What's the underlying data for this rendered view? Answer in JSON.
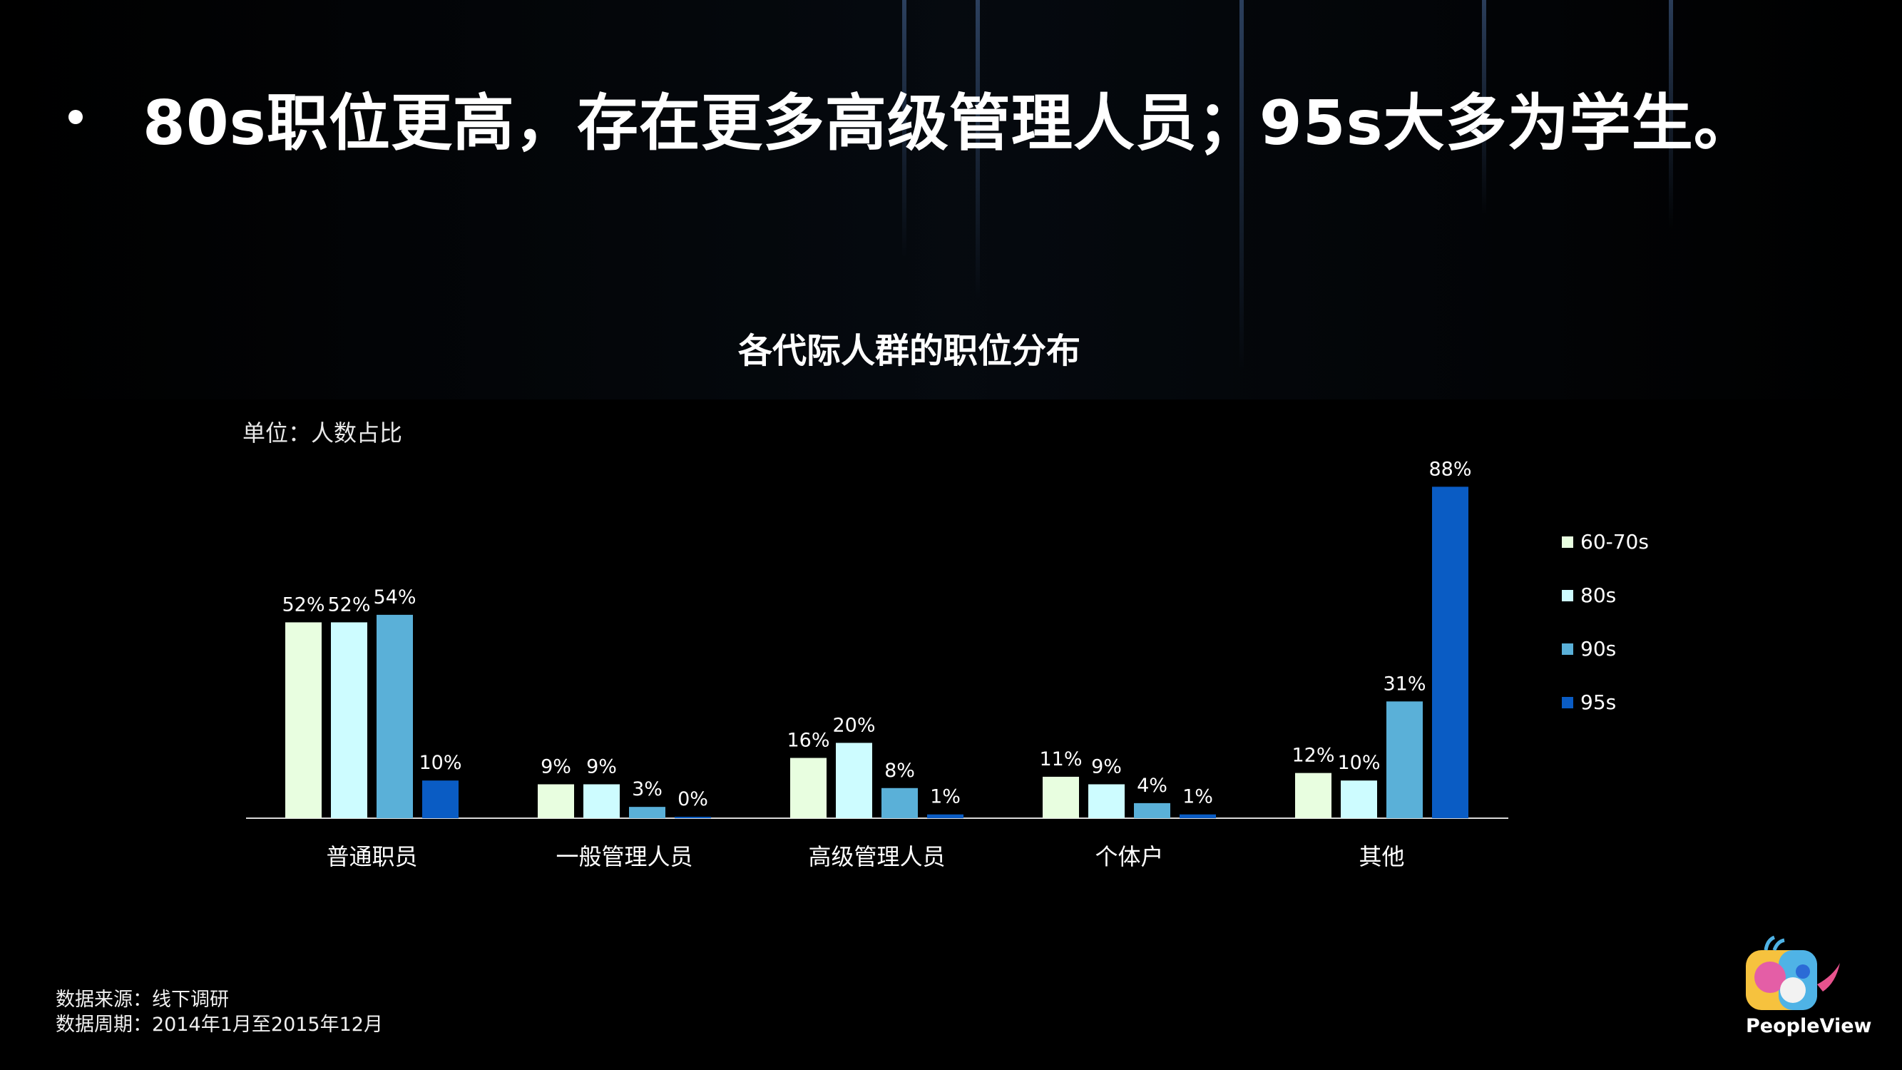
{
  "headline": "80s职位更高，存在更多高级管理人员；95s大多为学生。",
  "chart_data": {
    "type": "bar",
    "title": "各代际人群的职位分布",
    "unit_label": "单位：人数占比",
    "categories": [
      "普通职员",
      "一般管理人员",
      "高级管理人员",
      "个体户",
      "其他"
    ],
    "series": [
      {
        "name": "60-70s",
        "color": "#e8fee0",
        "values": [
          52,
          9,
          16,
          11,
          12
        ]
      },
      {
        "name": "80s",
        "color": "#cdfcff",
        "values": [
          52,
          9,
          20,
          9,
          10
        ]
      },
      {
        "name": "90s",
        "color": "#5ab0d8",
        "values": [
          54,
          3,
          8,
          4,
          31
        ]
      },
      {
        "name": "95s",
        "color": "#0a5cc4",
        "values": [
          10,
          0,
          1,
          1,
          88
        ]
      }
    ],
    "value_suffix": "%",
    "legend_position": "right"
  },
  "footer": {
    "source": "数据来源：线下调研",
    "period": "数据周期：2014年1月至2015年12月"
  },
  "brand": {
    "name": "PeopleView"
  }
}
